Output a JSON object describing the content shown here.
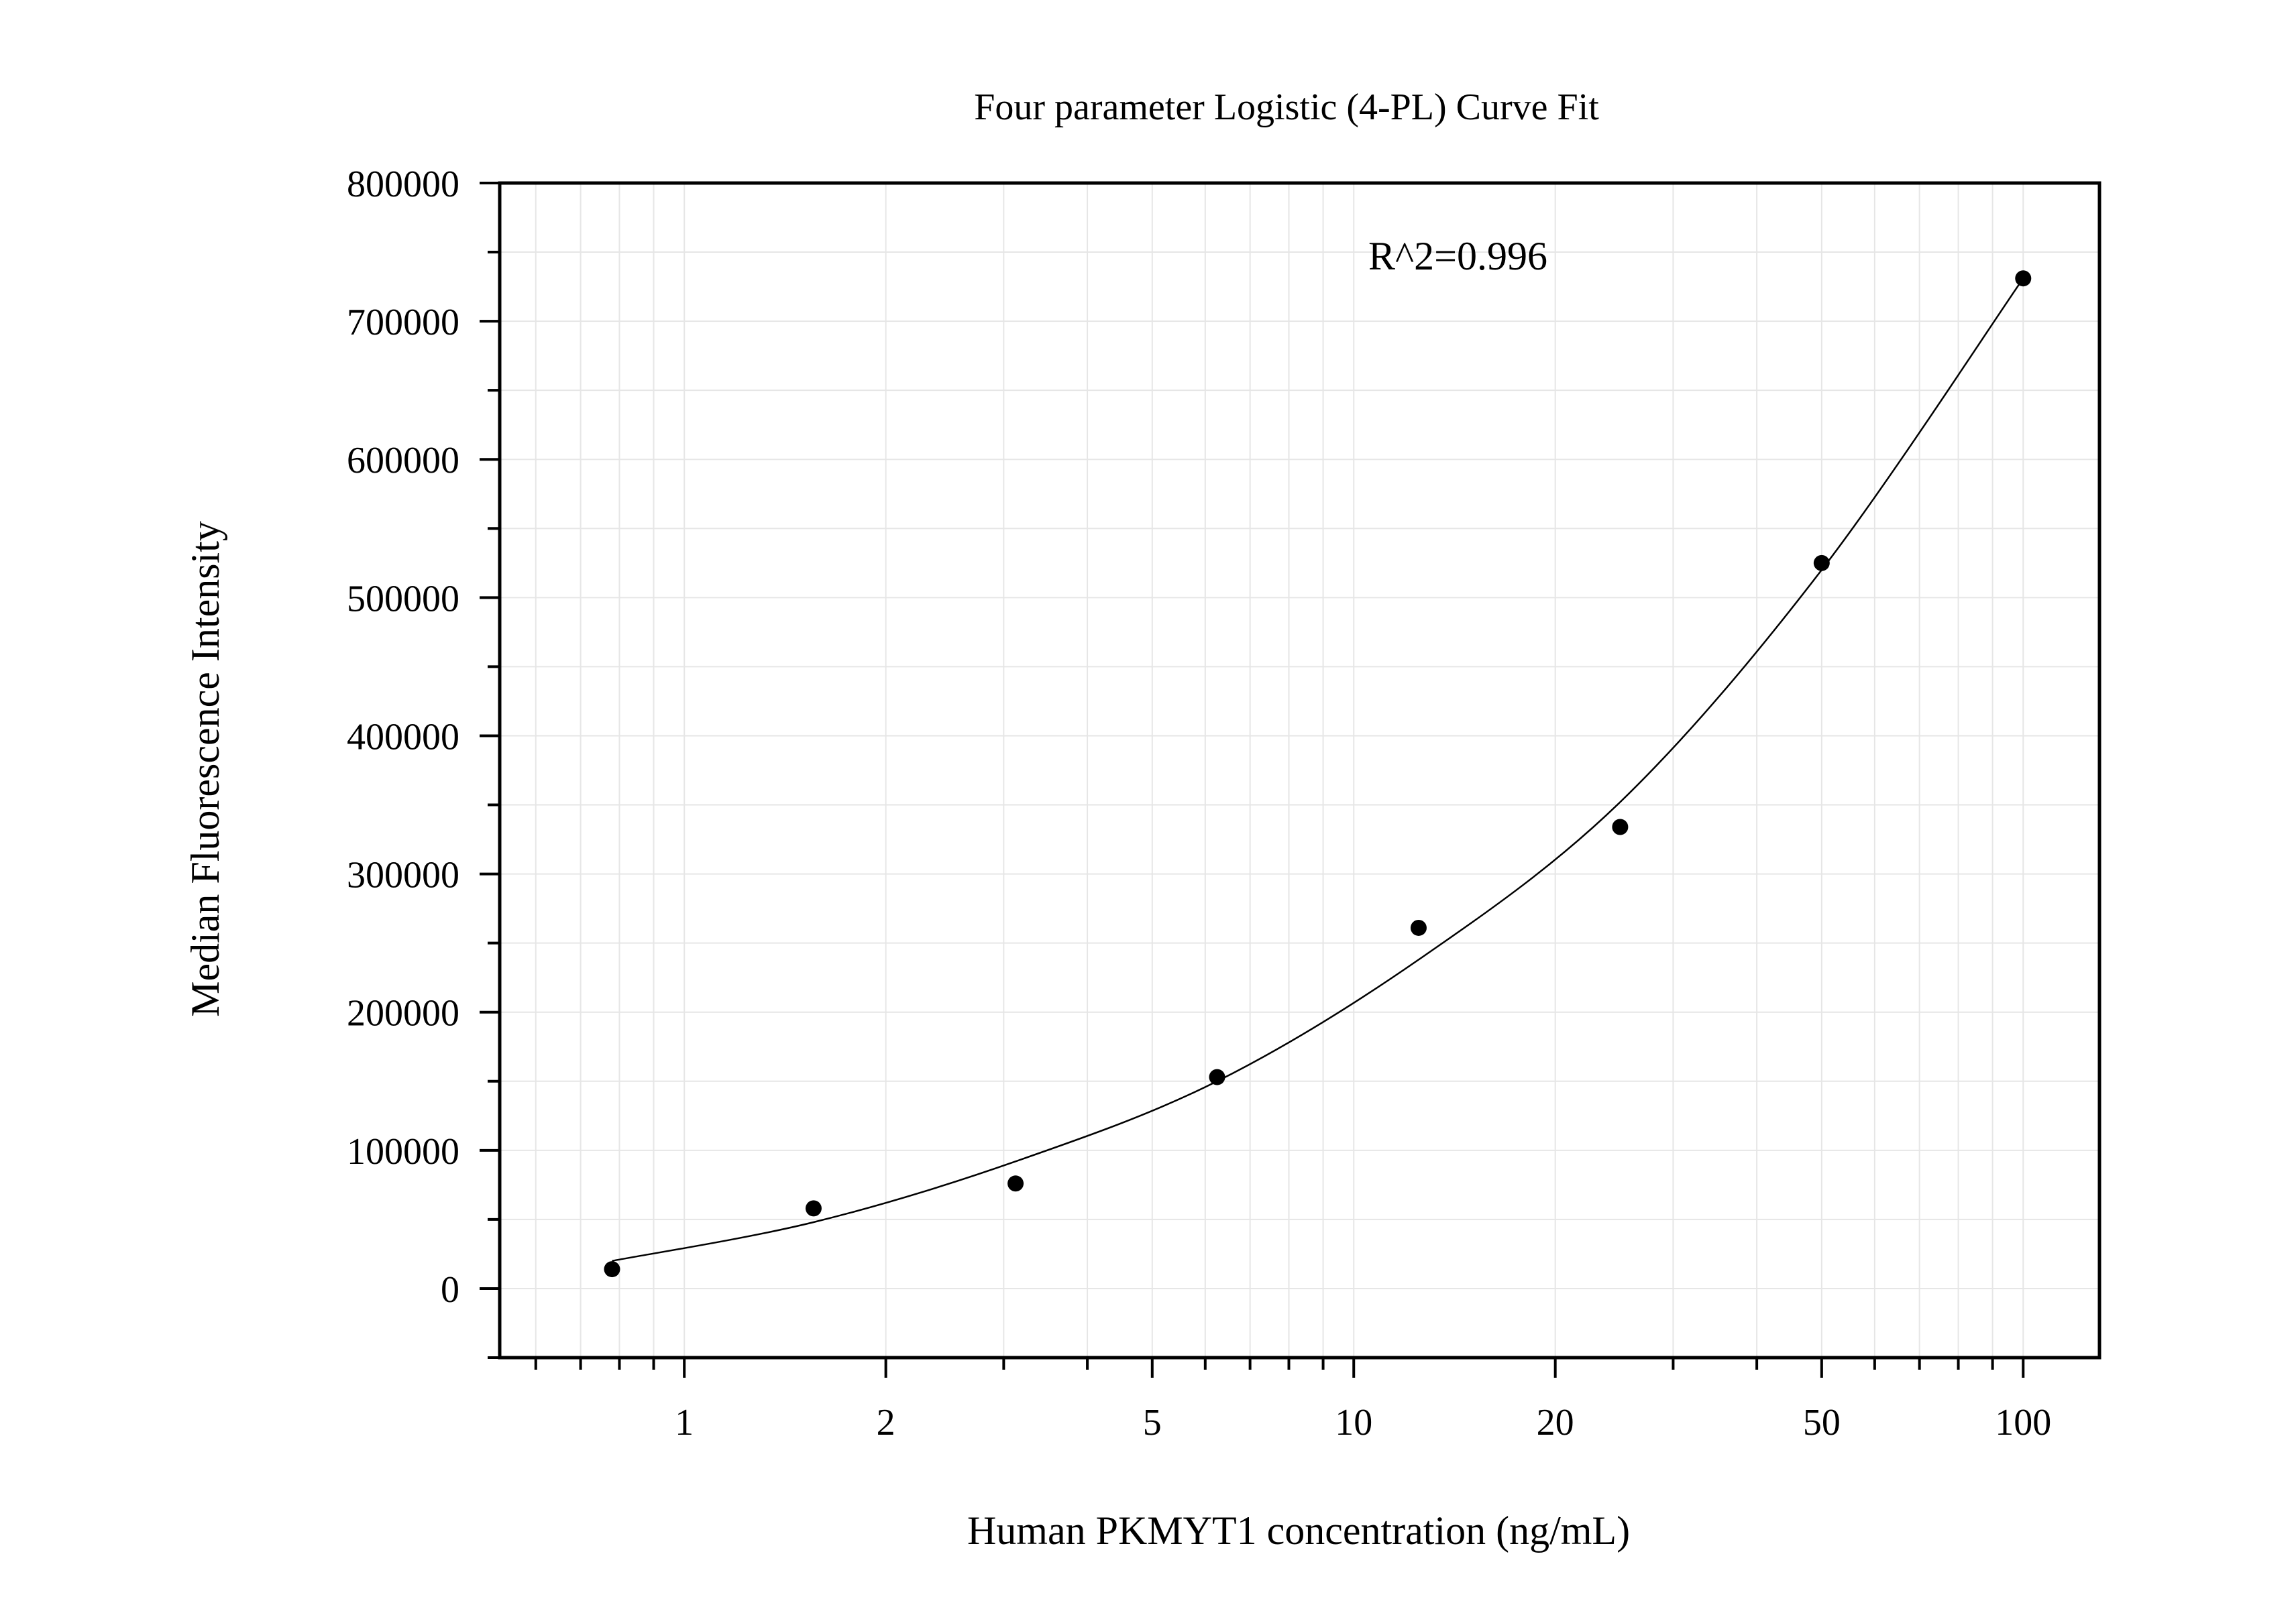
{
  "chart_data": {
    "type": "scatter",
    "title": "Four parameter Logistic (4-PL) Curve Fit",
    "xlabel": "Human PKMYT1 concentration (ng/mL)",
    "ylabel": "Median Fluorescence Intensity",
    "annotation": "R^2=0.996",
    "x_scale": "log",
    "xlim": [
      0.53,
      130
    ],
    "ylim": [
      -50000,
      800000
    ],
    "x_ticks": [
      1,
      2,
      5,
      10,
      20,
      50,
      100
    ],
    "x_tick_labels": [
      "1",
      "2",
      "5",
      "10",
      "20",
      "50",
      "100"
    ],
    "y_ticks": [
      0,
      100000,
      200000,
      300000,
      400000,
      500000,
      600000,
      700000,
      800000
    ],
    "y_tick_labels": [
      "0",
      "100000",
      "200000",
      "300000",
      "400000",
      "500000",
      "600000",
      "700000",
      "800000"
    ],
    "grid": true,
    "legend": "none",
    "marker_color": "#000000",
    "line_color": "#000000",
    "grid_color": "#e6e6e6",
    "series": [
      {
        "type": "scatter",
        "x": [
          0.78,
          1.56,
          3.125,
          6.25,
          12.5,
          25,
          50,
          100
        ],
        "y": [
          14000,
          58000,
          76000,
          153000,
          261000,
          334000,
          525000,
          731000
        ]
      },
      {
        "type": "line",
        "x": [
          0.78,
          1.56,
          3.125,
          6.25,
          12.5,
          25,
          50,
          100
        ],
        "y": [
          20000,
          48000,
          92000,
          150000,
          238000,
          352000,
          520000,
          731000
        ]
      }
    ]
  }
}
